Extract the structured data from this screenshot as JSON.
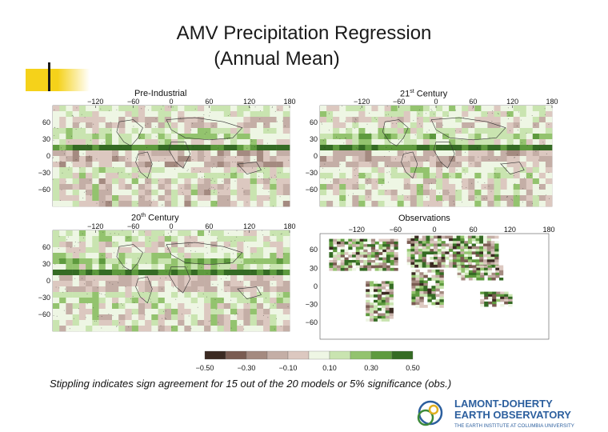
{
  "title_line1": "AMV Precipitation Regression",
  "title_line2": "(Annual Mean)",
  "panels": [
    {
      "label": "Pre-Industrial",
      "label_sup": "",
      "label_rest": ""
    },
    {
      "label": "21",
      "label_sup": "st",
      "label_rest": " Century"
    },
    {
      "label": "20",
      "label_sup": "th",
      "label_rest": " Century"
    },
    {
      "label": "Observations",
      "label_sup": "",
      "label_rest": ""
    }
  ],
  "map_axes": {
    "lon_ticks": [
      "−120",
      "−60",
      "0",
      "60",
      "120",
      "180"
    ],
    "lat_ticks": [
      "60",
      "30",
      "0",
      "−30",
      "−60"
    ],
    "obs_lat_ticks": [
      "60",
      "30",
      "0",
      "−30",
      "−60"
    ]
  },
  "colorbar": {
    "tick_labels": [
      "−0.50",
      "−0.30",
      "−0.10",
      "0.10",
      "0.30",
      "0.50"
    ],
    "colors": [
      "#3b2a22",
      "#7a5c52",
      "#a48a80",
      "#c4aea6",
      "#dcc8c0",
      "#eef6e4",
      "#c9e4b0",
      "#93c36e",
      "#5e9a3e",
      "#356b24"
    ]
  },
  "caption": "Stippling indicates sign agreement for 15 out of the 20 models or 5% significance (obs.)",
  "logo": {
    "line1": "LAMONT-DOHERTY",
    "line2": "EARTH OBSERVATORY",
    "line3": "THE EARTH INSTITUTE AT COLUMBIA UNIVERSITY"
  }
}
